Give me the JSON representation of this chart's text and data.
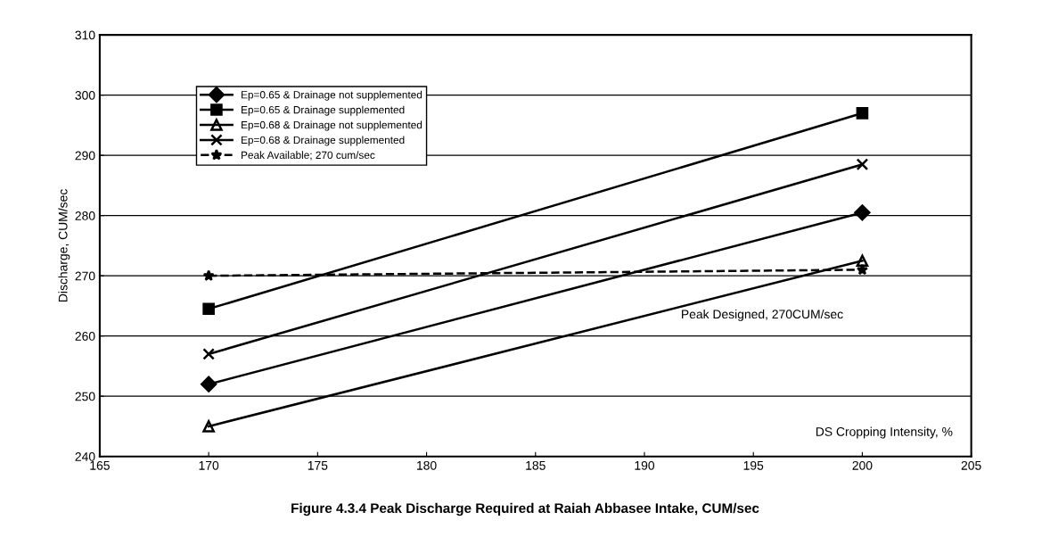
{
  "chart_data": {
    "type": "line",
    "title": "Figure 4.3.4 Peak Discharge Required at Raiah Abbasee Intake, CUM/sec",
    "xlabel": "DS Cropping Intensity, %",
    "ylabel": "Discharge, CUM/sec",
    "x": [
      170,
      200
    ],
    "series": [
      {
        "name": "Ep=0.65 & Drainage not supplemented",
        "color": "#000000",
        "marker": "diamond",
        "values": [
          252,
          280.5
        ]
      },
      {
        "name": "Ep=0.65 & Drainage supplemented",
        "color": "#000000",
        "marker": "square",
        "values": [
          264.5,
          297
        ]
      },
      {
        "name": "Ep=0.68 & Drainage not supplemented",
        "color": "#000000",
        "marker": "triangle",
        "values": [
          245,
          272.5
        ]
      },
      {
        "name": "Ep=0.68 & Drainage supplemented",
        "color": "#000000",
        "marker": "cross",
        "values": [
          257,
          288.5
        ]
      },
      {
        "name": "Peak Available; 270 cum/sec",
        "color": "#000000",
        "marker": "star",
        "line_style": "dashed",
        "values": [
          270,
          271
        ]
      }
    ],
    "annotations": [
      "Peak Designed, 270CUM/sec"
    ],
    "xlim": [
      165,
      205
    ],
    "xticks": [
      165,
      170,
      175,
      180,
      185,
      190,
      195,
      200,
      205
    ],
    "ylim": [
      240,
      310
    ],
    "yticks": [
      240,
      250,
      260,
      270,
      280,
      290,
      300,
      310
    ],
    "grid": "y",
    "legend": "top left"
  }
}
